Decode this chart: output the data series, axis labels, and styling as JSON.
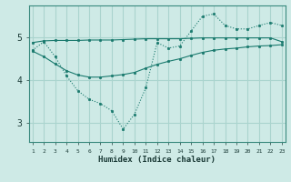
{
  "xlabel": "Humidex (Indice chaleur)",
  "bg_color": "#ceeae6",
  "grid_color": "#aad4ce",
  "line_color": "#1a7a6e",
  "x_ticks": [
    1,
    2,
    3,
    4,
    5,
    6,
    7,
    8,
    9,
    10,
    11,
    12,
    13,
    14,
    15,
    16,
    17,
    18,
    19,
    20,
    21,
    22,
    23
  ],
  "y_ticks": [
    3,
    4,
    5
  ],
  "ylim": [
    2.55,
    5.75
  ],
  "xlim": [
    0.7,
    23.3
  ],
  "series1_x": [
    1,
    2,
    3,
    4,
    5,
    6,
    7,
    8,
    9,
    10,
    11,
    12,
    13,
    14,
    15,
    16,
    17,
    18,
    19,
    20,
    21,
    22,
    23
  ],
  "series1_y": [
    4.7,
    4.9,
    4.55,
    4.1,
    3.75,
    3.55,
    3.45,
    3.28,
    2.85,
    3.2,
    3.82,
    4.88,
    4.75,
    4.8,
    5.15,
    5.5,
    5.55,
    5.28,
    5.2,
    5.2,
    5.28,
    5.35,
    5.28
  ],
  "series2_x": [
    1,
    2,
    3,
    4,
    5,
    6,
    7,
    8,
    9,
    10,
    11,
    12,
    13,
    14,
    15,
    16,
    17,
    18,
    19,
    20,
    21,
    22,
    23
  ],
  "series2_y": [
    4.88,
    4.92,
    4.93,
    4.93,
    4.93,
    4.94,
    4.94,
    4.94,
    4.95,
    4.96,
    4.97,
    4.97,
    4.97,
    4.97,
    4.98,
    4.99,
    4.99,
    4.99,
    4.99,
    4.99,
    4.99,
    4.99,
    4.9
  ],
  "series3_x": [
    1,
    2,
    3,
    4,
    5,
    6,
    7,
    8,
    9,
    10,
    11,
    12,
    13,
    14,
    15,
    16,
    17,
    18,
    19,
    20,
    21,
    22,
    23
  ],
  "series3_y": [
    4.68,
    4.55,
    4.38,
    4.22,
    4.12,
    4.07,
    4.07,
    4.1,
    4.13,
    4.18,
    4.28,
    4.37,
    4.44,
    4.5,
    4.58,
    4.65,
    4.7,
    4.73,
    4.75,
    4.78,
    4.8,
    4.81,
    4.83
  ]
}
